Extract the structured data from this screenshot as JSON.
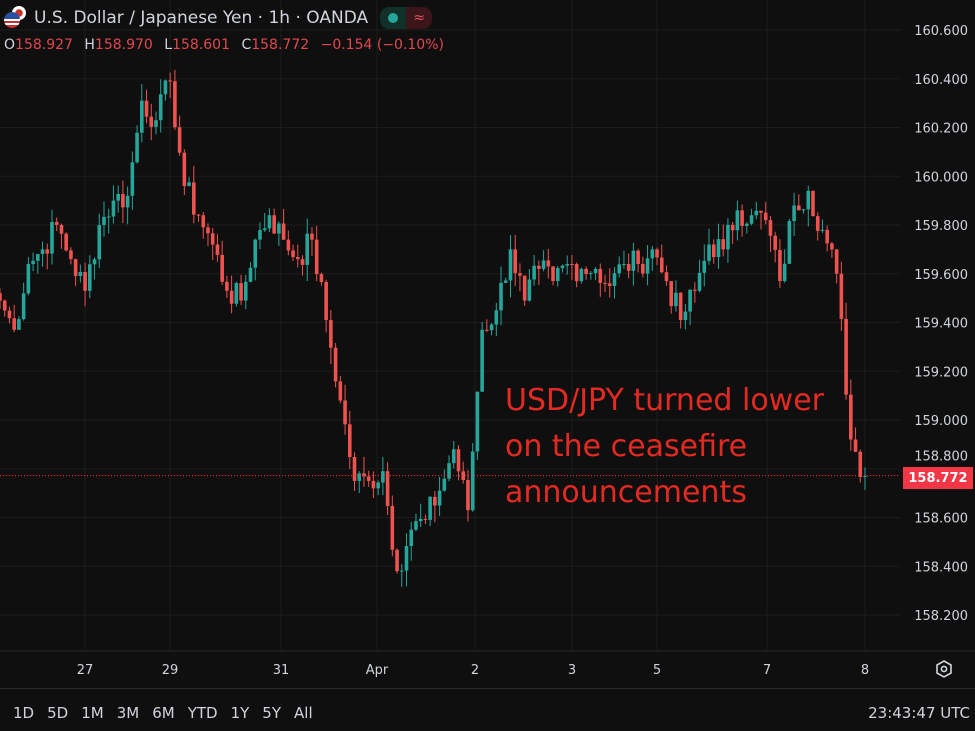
{
  "header": {
    "title": "U.S. Dollar / Japanese Yen · 1h · OANDA",
    "status_icon": "market-open-dot",
    "status_icon2": "≈",
    "ohlc": {
      "o_label": "O",
      "o": "158.927",
      "h_label": "H",
      "h": "158.970",
      "l_label": "L",
      "l": "158.601",
      "c_label": "C",
      "c": "158.772",
      "change": "−0.154 (−0.10%)"
    }
  },
  "annotation": {
    "lines": [
      "USD/JPY turned lower",
      "on the ceasefire",
      "announcements"
    ],
    "color": "#e32a22"
  },
  "current_price_label": "158.772",
  "bottom": {
    "ranges": [
      "1D",
      "5D",
      "1M",
      "3M",
      "6M",
      "YTD",
      "1Y",
      "5Y",
      "All"
    ],
    "clock": "23:43:47 UTC"
  },
  "colors": {
    "up": "#26a69a",
    "down": "#ef5350",
    "background": "#0f0f0f",
    "price_label": "#f23645"
  },
  "chart_data": {
    "type": "candlestick",
    "symbol": "USD/JPY",
    "interval": "1h",
    "x_tick_labels": [
      "27",
      "29",
      "31",
      "Apr",
      "2",
      "3",
      "5",
      "7",
      "8"
    ],
    "y_tick_labels": [
      "160.600",
      "160.400",
      "160.200",
      "160.000",
      "159.800",
      "159.600",
      "159.400",
      "159.200",
      "159.000",
      "158.800",
      "158.600",
      "158.400",
      "158.200"
    ],
    "ylim": [
      158.1,
      160.62
    ],
    "approx_closes": [
      159.49,
      159.37,
      159.64,
      159.7,
      159.8,
      159.66,
      159.53,
      159.8,
      159.9,
      159.92,
      160.31,
      160.23,
      160.39,
      159.96,
      159.84,
      159.72,
      159.53,
      159.49,
      159.74,
      159.84,
      159.74,
      159.66,
      159.74,
      159.41,
      159.08,
      158.75,
      158.75,
      158.79,
      158.38,
      158.55,
      158.59,
      158.71,
      158.88,
      158.63,
      159.37,
      159.45,
      159.7,
      159.49,
      159.62,
      159.57,
      159.64,
      159.62,
      159.62,
      159.55,
      159.64,
      159.64,
      159.7,
      159.57,
      159.41,
      159.53,
      159.72,
      159.7,
      159.86,
      159.84,
      159.82,
      159.57,
      159.88,
      159.94,
      159.78,
      159.6,
      158.92,
      158.77
    ],
    "last_price": 158.772,
    "grid": true
  }
}
